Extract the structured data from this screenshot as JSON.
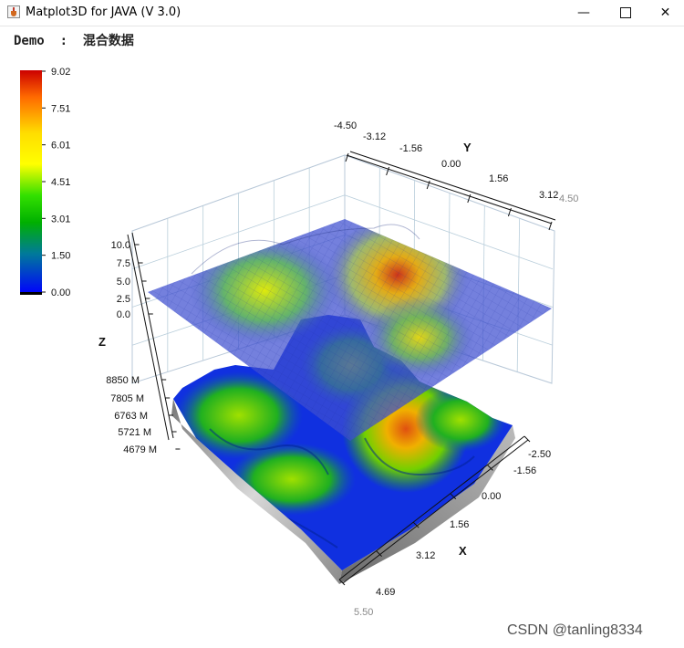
{
  "window": {
    "title": "Matplot3D for JAVA (V 3.0)",
    "icon": "java-cup-icon",
    "minimize": "—",
    "close": "✕"
  },
  "plot": {
    "title": "Demo  :  混合数据"
  },
  "colorbar": {
    "ticks": [
      "9.02",
      "7.51",
      "6.01",
      "4.51",
      "3.01",
      "1.50",
      "0.00"
    ],
    "colors": [
      "#d40000",
      "#ff8c00",
      "#ffff00",
      "#4cd400",
      "#00c000",
      "#0060c0",
      "#0000ff"
    ]
  },
  "axes": {
    "y_label": "Y",
    "y_ticks": [
      "-4.50",
      "-3.12",
      "-1.56",
      "0.00",
      "1.56",
      "3.12"
    ],
    "y_end_tick": "4.50",
    "x_label": "X",
    "x_ticks": [
      "-2.50",
      "-1.56",
      "0.00",
      "1.56",
      "3.12",
      "4.69"
    ],
    "x_end_tick": "5.50",
    "z_label": "Z",
    "z_upper_ticks": [
      "10.0",
      "7.5",
      "5.0",
      "2.5",
      "0.0"
    ],
    "z_lower_ticks": [
      "8850 M",
      "7805 M",
      "6763 M",
      "5721 M",
      "4679 M"
    ]
  },
  "watermark": "CSDN @tanling8334"
}
